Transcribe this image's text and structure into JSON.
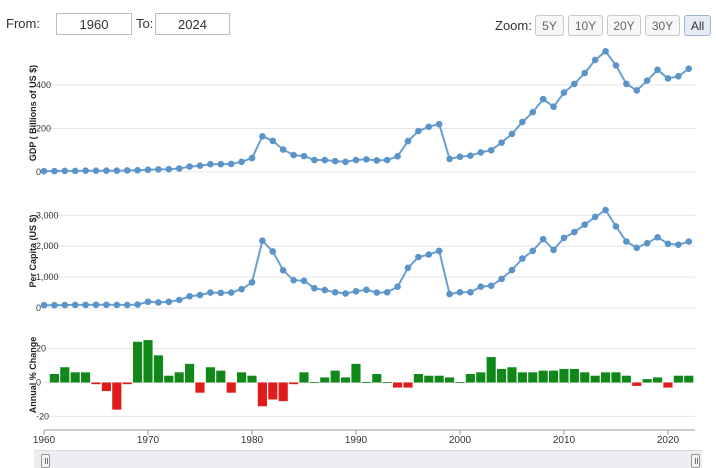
{
  "range": {
    "from_label": "From:",
    "from_value": "1960",
    "to_label": "To:",
    "to_value": "2024"
  },
  "zoom": {
    "label": "Zoom:",
    "buttons": [
      "5Y",
      "10Y",
      "20Y",
      "30Y",
      "All"
    ],
    "active": "All"
  },
  "colors": {
    "line": "#6a9fcf",
    "marker": "#5b94c9",
    "positive": "#11881a",
    "negative": "#e01b1b",
    "grid": "#e6e6e6"
  },
  "chart_data": [
    {
      "type": "line",
      "ylabel": "GDP ( Billions of US $)",
      "ylim": [
        0,
        570
      ],
      "yticks": [
        "0",
        "200",
        "400"
      ],
      "ytick_values": [
        0,
        200,
        400
      ],
      "x": [
        1960,
        1961,
        1962,
        1963,
        1964,
        1965,
        1966,
        1967,
        1968,
        1969,
        1970,
        1971,
        1972,
        1973,
        1974,
        1975,
        1976,
        1977,
        1978,
        1979,
        1980,
        1981,
        1982,
        1983,
        1984,
        1985,
        1986,
        1987,
        1988,
        1989,
        1990,
        1991,
        1992,
        1993,
        1994,
        1995,
        1996,
        1997,
        1998,
        1999,
        2000,
        2001,
        2002,
        2003,
        2004,
        2005,
        2006,
        2007,
        2008,
        2009,
        2010,
        2011,
        2012,
        2013,
        2014,
        2015,
        2016,
        2017,
        2018,
        2019,
        2020,
        2021,
        2022
      ],
      "values": [
        4,
        4,
        5,
        5,
        6,
        6,
        6,
        6,
        7,
        8,
        10,
        12,
        13,
        16,
        25,
        29,
        36,
        36,
        37,
        47,
        64,
        164,
        143,
        103,
        78,
        73,
        55,
        55,
        50,
        47,
        55,
        58,
        53,
        55,
        72,
        142,
        188,
        208,
        220,
        60,
        70,
        75,
        90,
        100,
        135,
        175,
        230,
        275,
        335,
        300,
        365,
        405,
        455,
        515,
        555,
        490,
        405,
        375,
        420,
        470,
        430,
        440,
        475
      ]
    },
    {
      "type": "line",
      "ylabel": "Per Capita (US $)",
      "ylim": [
        0,
        3400
      ],
      "yticks": [
        "0",
        "1,000",
        "2,000",
        "3,000"
      ],
      "ytick_values": [
        0,
        1000,
        2000,
        3000
      ],
      "x": [
        1960,
        1961,
        1962,
        1963,
        1964,
        1965,
        1966,
        1967,
        1968,
        1969,
        1970,
        1971,
        1972,
        1973,
        1974,
        1975,
        1976,
        1977,
        1978,
        1979,
        1980,
        1981,
        1982,
        1983,
        1984,
        1985,
        1986,
        1987,
        1988,
        1989,
        1990,
        1991,
        1992,
        1993,
        1994,
        1995,
        1996,
        1997,
        1998,
        1999,
        2000,
        2001,
        2002,
        2003,
        2004,
        2005,
        2006,
        2007,
        2008,
        2009,
        2010,
        2011,
        2012,
        2013,
        2014,
        2015,
        2016,
        2017,
        2018,
        2019,
        2020,
        2021,
        2022
      ],
      "values": [
        90,
        90,
        95,
        100,
        100,
        105,
        105,
        100,
        100,
        110,
        200,
        180,
        200,
        260,
        380,
        420,
        500,
        490,
        500,
        610,
        830,
        2180,
        1830,
        1220,
        900,
        880,
        640,
        580,
        510,
        470,
        540,
        590,
        500,
        510,
        690,
        1300,
        1650,
        1730,
        1850,
        450,
        510,
        510,
        690,
        720,
        940,
        1230,
        1600,
        1850,
        2230,
        1880,
        2270,
        2460,
        2700,
        2950,
        3170,
        2640,
        2150,
        1950,
        2100,
        2290,
        2080,
        2050,
        2150
      ]
    },
    {
      "type": "bar",
      "ylabel": "Annual % Change",
      "ylim": [
        -28,
        28
      ],
      "yticks": [
        "-20",
        "0",
        "20"
      ],
      "ytick_values": [
        -20,
        0,
        20
      ],
      "x": [
        1961,
        1962,
        1963,
        1964,
        1965,
        1966,
        1967,
        1968,
        1969,
        1970,
        1971,
        1972,
        1973,
        1974,
        1975,
        1976,
        1977,
        1978,
        1979,
        1980,
        1981,
        1982,
        1983,
        1984,
        1985,
        1986,
        1987,
        1988,
        1989,
        1990,
        1991,
        1992,
        1993,
        1994,
        1995,
        1996,
        1997,
        1998,
        1999,
        2000,
        2001,
        2002,
        2003,
        2004,
        2005,
        2006,
        2007,
        2008,
        2009,
        2010,
        2011,
        2012,
        2013,
        2014,
        2015,
        2016,
        2017,
        2018,
        2019,
        2020,
        2021,
        2022
      ],
      "values": [
        5,
        9,
        6,
        6,
        -1,
        -5,
        -16,
        -1,
        24,
        25,
        16,
        4,
        6,
        11,
        -6,
        9,
        7,
        -6,
        6,
        4,
        -14,
        -10,
        -11,
        -1,
        6,
        0,
        3,
        7,
        3,
        11,
        0,
        5,
        0,
        -3,
        -3,
        5,
        4,
        4,
        3,
        0,
        5,
        6,
        15,
        8,
        9,
        6,
        6,
        7,
        7,
        8,
        8,
        6,
        4,
        6,
        6,
        4,
        -2,
        2,
        3,
        -3,
        4,
        4
      ]
    }
  ],
  "xaxis": {
    "ticks": [
      "1960",
      "1970",
      "1980",
      "1990",
      "2000",
      "2010",
      "2020"
    ],
    "tick_values": [
      1960,
      1970,
      1980,
      1990,
      2000,
      2010,
      2020
    ],
    "range": [
      1960,
      2022.6
    ]
  }
}
